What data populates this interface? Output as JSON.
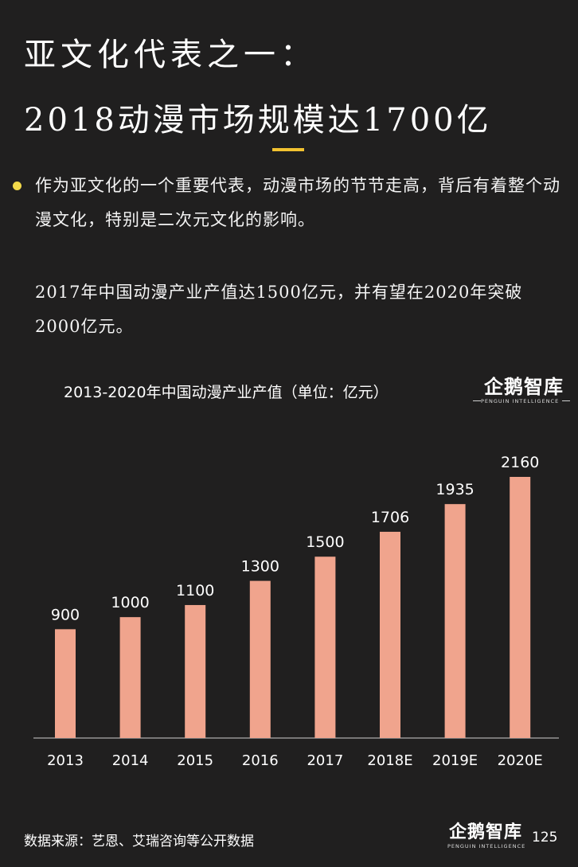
{
  "header": {
    "title_line1": "亚文化代表之一：",
    "title_line2": "2018动漫市场规模达1700亿"
  },
  "body": {
    "paragraph1": "作为亚文化的一个重要代表，动漫市场的节节走高，背后有着整个动漫文化，特别是二次元文化的影响。",
    "paragraph2": "2017年中国动漫产业产值达1500亿元，并有望在2020年突破2000亿元。"
  },
  "logo": {
    "zh": "企鹅智库",
    "en": "PENGUIN INTELLIGENCE"
  },
  "colors": {
    "background": "#201f1f",
    "bar": "#f0a48d",
    "accent_yellow": "#f2c230"
  },
  "chart_data": {
    "type": "bar",
    "title": "2013-2020年中国动漫产业产值（单位：亿元）",
    "categories": [
      "2013",
      "2014",
      "2015",
      "2016",
      "2017",
      "2018E",
      "2019E",
      "2020E"
    ],
    "values": [
      900,
      1000,
      1100,
      1300,
      1500,
      1706,
      1935,
      2160
    ],
    "data_labels": [
      "900",
      "1000",
      "1100",
      "1300",
      "1500",
      "1706",
      "1935",
      "2160"
    ],
    "xlabel": "",
    "ylabel": "",
    "ylim": [
      0,
      2160
    ],
    "grid": false,
    "legend": "none"
  },
  "footer": {
    "source": "数据来源：艺恩、艾瑞咨询等公开数据",
    "page_number": "125"
  }
}
